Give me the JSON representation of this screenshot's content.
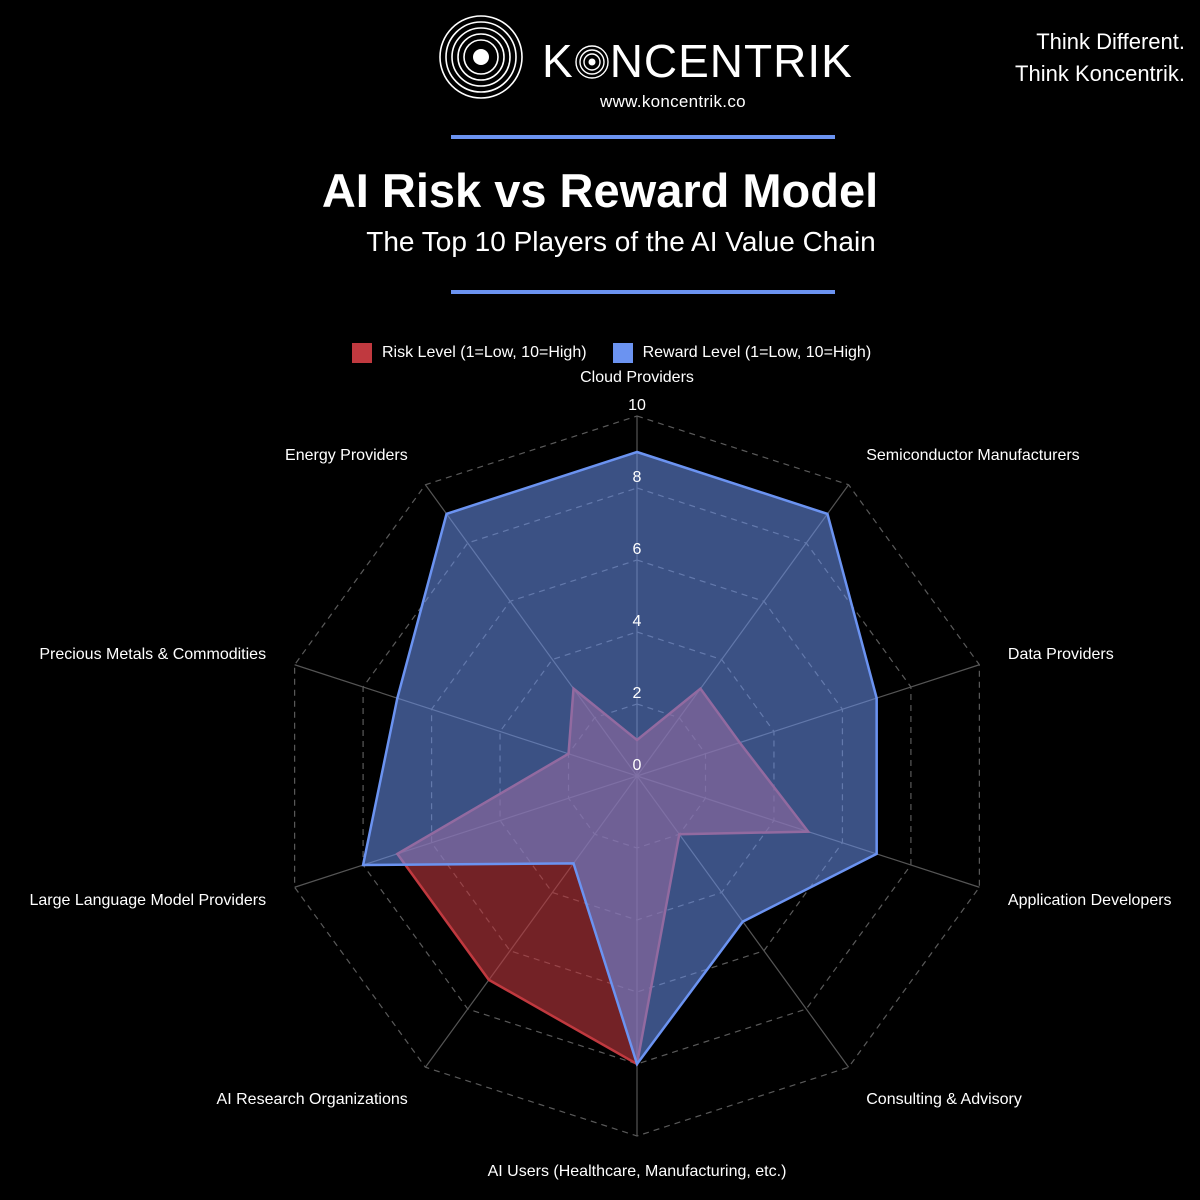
{
  "brand": {
    "name_prefix": "K",
    "name_suffix": "NCENTRIK",
    "website": "www.koncentrik.co",
    "tagline_line1": "Think Different.",
    "tagline_line2": "Think Koncentrik."
  },
  "colors": {
    "background": "#000000",
    "accent_rule": "#6b93f1",
    "risk": "#c0393f",
    "reward": "#6b93f1"
  },
  "chart_data": {
    "type": "radar",
    "title": "AI Risk vs Reward Model",
    "subtitle": "The Top 10 Players of the AI Value Chain",
    "categories": [
      "Cloud Providers",
      "Semiconductor Manufacturers",
      "Data Providers",
      "Application Developers",
      "Consulting & Advisory",
      "AI Users (Healthcare, Manufacturing, etc.)",
      "AI Research Organizations",
      "Large Language Model Providers",
      "Precious Metals & Commodities",
      "Energy Providers"
    ],
    "series": [
      {
        "name": "Risk Level (1=Low, 10=High)",
        "color": "#c0393f",
        "values": [
          1,
          3,
          3,
          5,
          2,
          8,
          7,
          7,
          2,
          3
        ]
      },
      {
        "name": "Reward Level (1=Low, 10=High)",
        "color": "#6b93f1",
        "values": [
          9,
          9,
          7,
          7,
          5,
          8,
          3,
          8,
          7,
          9
        ]
      }
    ],
    "scale": {
      "min": 0,
      "max": 10,
      "ticks": [
        "0",
        "2",
        "4",
        "6",
        "8",
        "10"
      ]
    },
    "grid": true,
    "legend_position": "top"
  }
}
